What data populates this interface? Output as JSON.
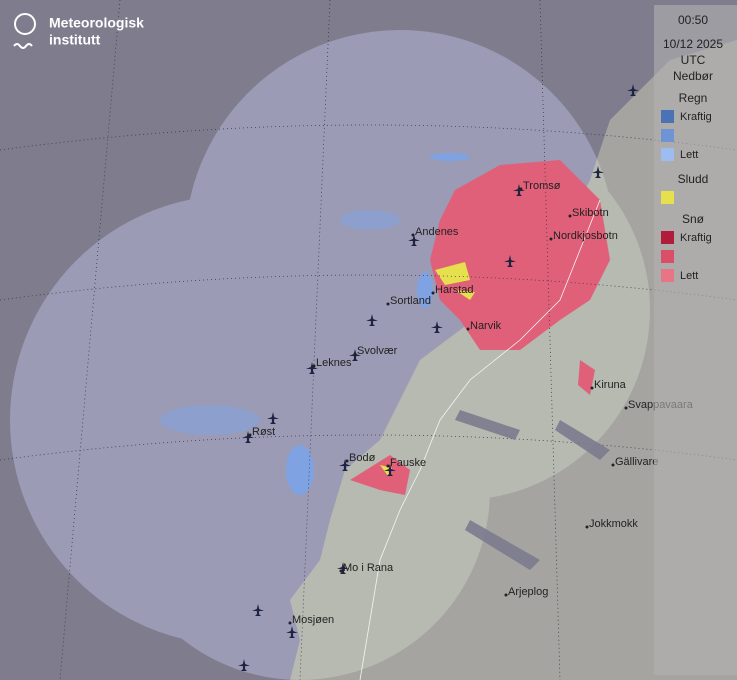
{
  "logo": {
    "line1": "Meteorologisk",
    "line2": "institutt"
  },
  "legend": {
    "time": "00:50",
    "date": "10/12 2025",
    "timezone": "UTC",
    "title": "Nedbør",
    "groups": [
      {
        "name": "Regn",
        "items": [
          {
            "label": "Kraftig",
            "color": "#4a72b4"
          },
          {
            "color": "#6e94d6"
          },
          {
            "label": "Lett",
            "color": "#9dbcef"
          }
        ]
      },
      {
        "name": "Sludd",
        "items": [
          {
            "color": "#e6e04e"
          }
        ]
      },
      {
        "name": "Snø",
        "items": [
          {
            "label": "Kraftig",
            "color": "#b01c3a"
          },
          {
            "color": "#d94f68"
          },
          {
            "label": "Lett",
            "color": "#e87585"
          }
        ]
      }
    ]
  },
  "places": [
    "Tromsø",
    "Skibotn",
    "Nordkjosbotn",
    "Andenes",
    "Harstad",
    "Sortland",
    "Narvik",
    "Svolvær",
    "Leknes",
    "Røst",
    "Kiruna",
    "Svappavaara",
    "Gällivare",
    "Bodø",
    "Fauske",
    "Jokkmokk",
    "Mo i Rana",
    "Arjeplog",
    "Mosjøen"
  ]
}
